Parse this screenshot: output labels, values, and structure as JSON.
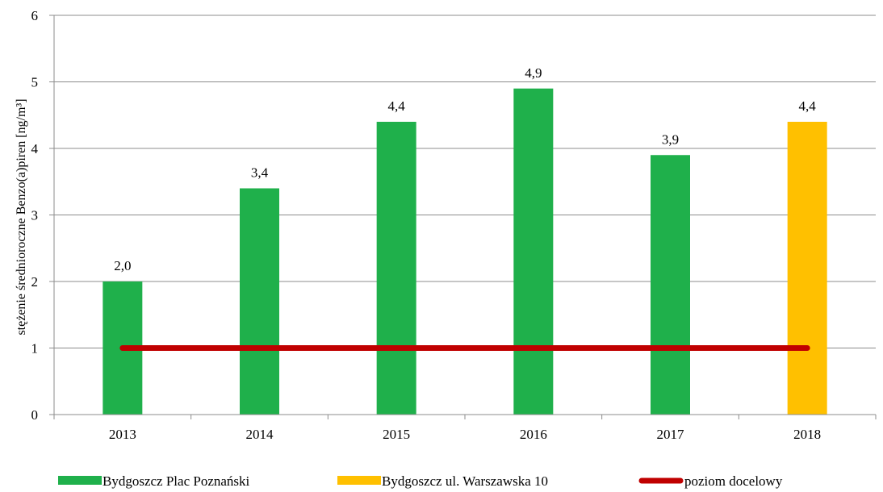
{
  "chart_data": {
    "type": "bar",
    "categories": [
      "2013",
      "2014",
      "2015",
      "2016",
      "2017",
      "2018"
    ],
    "series": [
      {
        "name": "Bydgoszcz Plac Poznański",
        "type": "bar",
        "color": "#1fb04b",
        "values": [
          2.0,
          3.4,
          4.4,
          4.9,
          3.9,
          null
        ]
      },
      {
        "name": "Bydgoszcz ul. Warszawska 10",
        "type": "bar",
        "color": "#ffc000",
        "values": [
          null,
          null,
          null,
          null,
          null,
          4.4
        ]
      },
      {
        "name": "poziom docelowy",
        "type": "line",
        "color": "#c00000",
        "values": [
          1,
          1,
          1,
          1,
          1,
          1
        ]
      }
    ],
    "data_labels": [
      "2,0",
      "3,4",
      "4,4",
      "4,9",
      "3,9",
      "4,4"
    ],
    "yticks": [
      "0",
      "1",
      "2",
      "3",
      "4",
      "5",
      "6"
    ],
    "ylim": [
      0,
      6
    ],
    "xlabel": "",
    "ylabel": "stężenie średnioroczne Benzo(a)piren [ng/m³]",
    "grid": true,
    "legend_position": "bottom"
  }
}
